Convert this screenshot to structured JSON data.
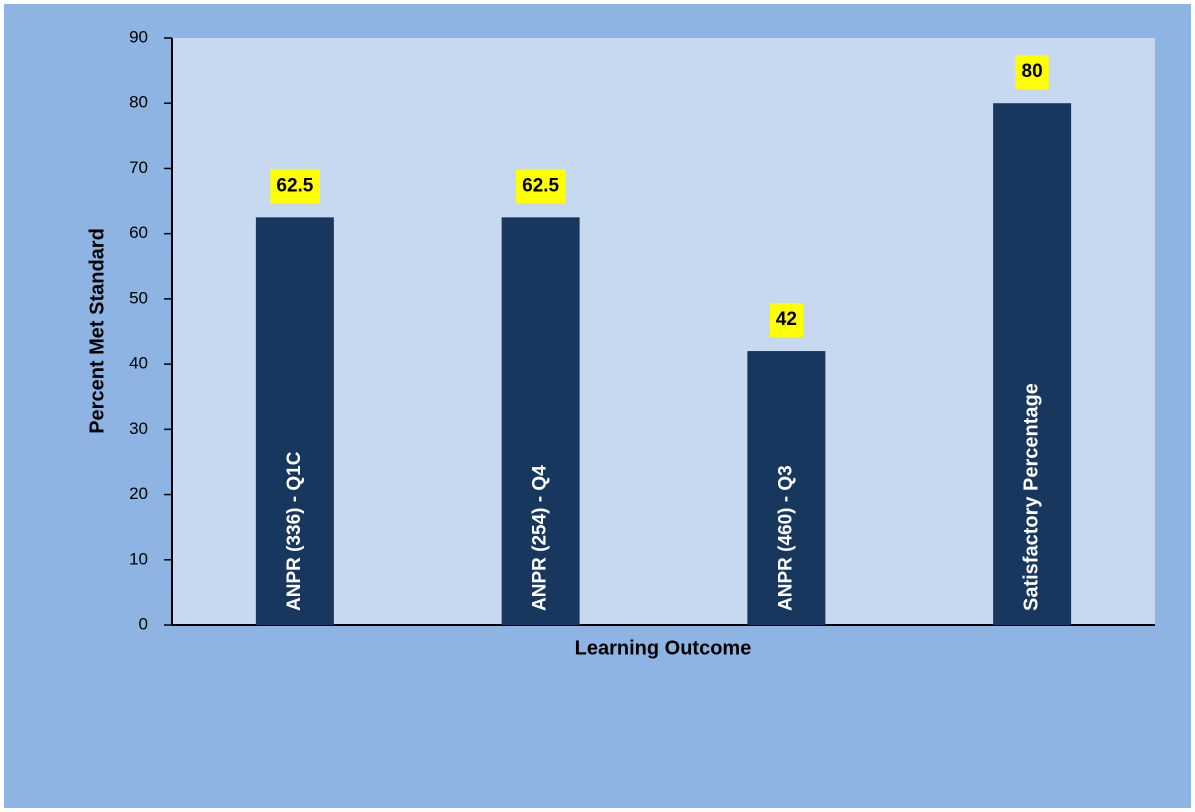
{
  "chart_data": {
    "type": "bar",
    "categories": [
      "ANPR (336) - Q1C",
      "ANPR (254) - Q4",
      "ANPR (460) - Q3",
      "Satisfactory Percentage"
    ],
    "values": [
      62.5,
      62.5,
      42,
      80
    ],
    "color": "#17375e",
    "label_color": "#ffff00",
    "x_label": "Learning Outcome",
    "y_label": "Percent Met Standard",
    "ylim": [
      0,
      90
    ],
    "yticks": [
      0,
      10,
      20,
      30,
      40,
      50,
      60,
      70,
      80,
      90
    ],
    "grid": false
  }
}
